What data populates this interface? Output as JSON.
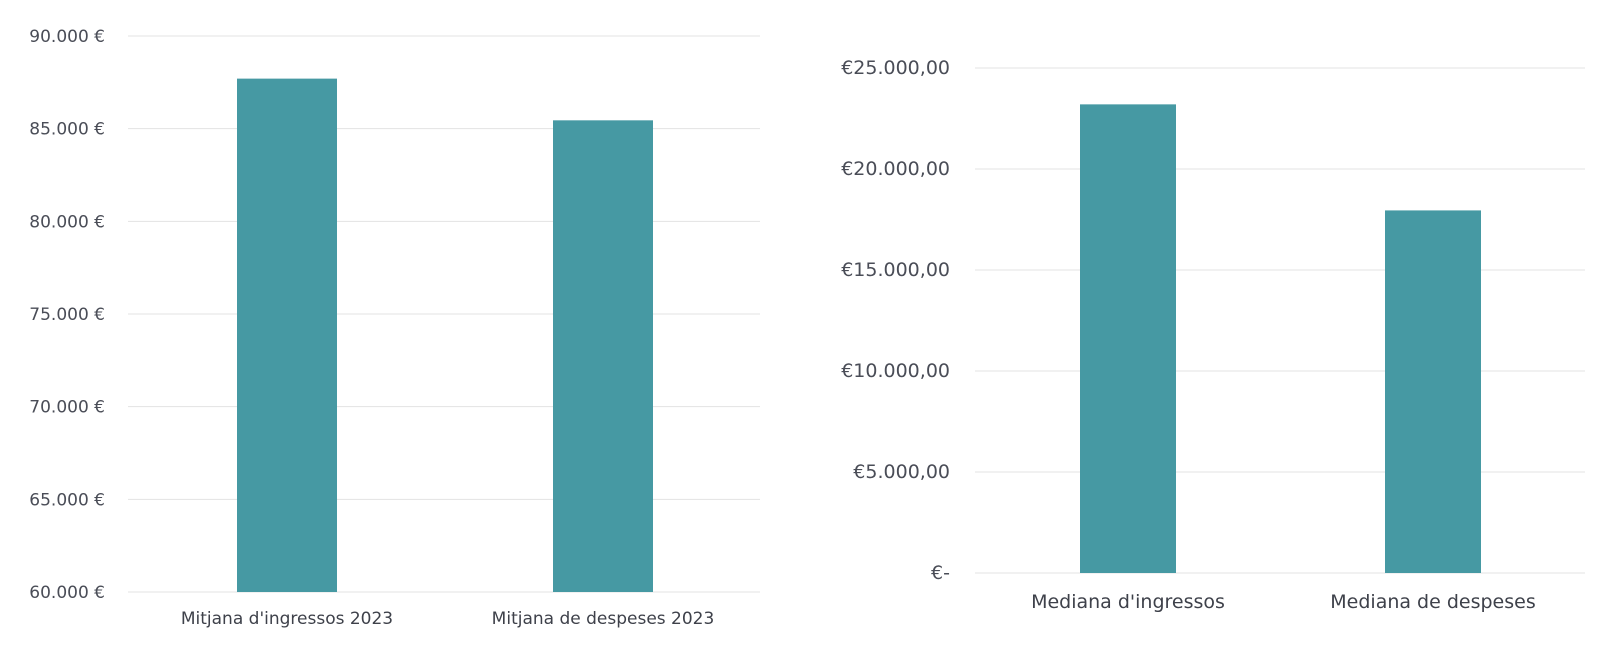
{
  "chart_data": [
    {
      "type": "bar",
      "categories": [
        "Mitjana d'ingressos 2023",
        "Mitjana de despeses 2023"
      ],
      "values": [
        87700,
        85450
      ],
      "ylim": [
        60000,
        90000
      ],
      "yticks": [
        60000,
        65000,
        70000,
        75000,
        80000,
        85000,
        90000
      ],
      "ytick_labels": [
        "60.000 €",
        "65.000 €",
        "70.000 €",
        "75.000 €",
        "80.000 €",
        "85.000 €",
        "90.000 €"
      ],
      "grid": true,
      "color": "#4699a3"
    },
    {
      "type": "bar",
      "categories": [
        "Mediana d'ingressos",
        "Mediana de despeses"
      ],
      "values": [
        23200,
        17950
      ],
      "ylim": [
        0,
        25000
      ],
      "yticks": [
        0,
        5000,
        10000,
        15000,
        20000,
        25000
      ],
      "ytick_labels": [
        "€-",
        "€5.000,00",
        "€10.000,00",
        "€15.000,00",
        "€20.000,00",
        "€25.000,00"
      ],
      "grid": true,
      "color": "#4699a3"
    }
  ]
}
